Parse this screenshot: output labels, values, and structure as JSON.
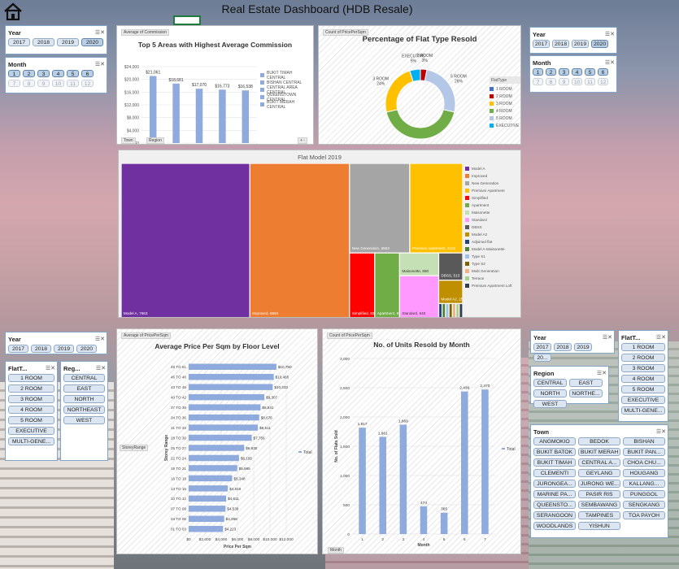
{
  "header": {
    "title": "Real Estate Dashboard (HDB Resale)",
    "home_icon": "home-icon"
  },
  "slicers": {
    "tl_year": {
      "title": "Year",
      "items": [
        "2017",
        "2018",
        "2019",
        "2020"
      ],
      "selected": [
        "2020"
      ]
    },
    "tl_month": {
      "title": "Month",
      "items": [
        "1",
        "2",
        "3",
        "4",
        "5",
        "6",
        "7",
        "8",
        "9",
        "10",
        "11",
        "12"
      ],
      "selected": [
        "1",
        "2",
        "3",
        "4",
        "5",
        "6"
      ]
    },
    "tr_year": {
      "title": "Year",
      "items": [
        "2017",
        "2018",
        "2019",
        "2020"
      ],
      "selected": [
        "2020"
      ]
    },
    "tr_month": {
      "title": "Month",
      "items": [
        "1",
        "2",
        "3",
        "4",
        "5",
        "6",
        "7",
        "8",
        "9",
        "10",
        "11",
        "12"
      ],
      "selected": [
        "1",
        "2",
        "3",
        "4",
        "5",
        "6"
      ]
    },
    "bl_year": {
      "title": "Year",
      "items": [
        "2017",
        "2018",
        "2019",
        "2020"
      ]
    },
    "bl_flattype": {
      "title": "FlatT...",
      "items": [
        "1 ROOM",
        "2 ROOM",
        "3 ROOM",
        "4 ROOM",
        "5 ROOM",
        "EXECUTIVE",
        "MULTI-GENE..."
      ]
    },
    "bl_region": {
      "title": "Reg...",
      "items": [
        "CENTRAL",
        "EAST",
        "NORTH",
        "NORTHEAST",
        "WEST"
      ]
    },
    "br_year": {
      "title": "Year",
      "items": [
        "2017",
        "2018",
        "2019",
        "20..."
      ]
    },
    "br_flattype": {
      "title": "FlatT...",
      "items": [
        "1 ROOM",
        "2 ROOM",
        "3 ROOM",
        "4 ROOM",
        "5 ROOM",
        "EXECUTIVE",
        "MULTI-GENE..."
      ]
    },
    "br_region": {
      "title": "Region",
      "items": [
        "CENTRAL",
        "EAST",
        "NORTH",
        "NORTHE...",
        "WEST"
      ]
    },
    "br_town": {
      "title": "Town",
      "items": [
        "ANGMOKIO",
        "BEDOK",
        "BISHAN",
        "BUKIT BATOK",
        "BUKIT MERAH",
        "BUKIT PAN...",
        "BUKIT TIMAH",
        "CENTRAL A...",
        "CHOA CHU...",
        "CLEMENTI",
        "GEYLANG",
        "HOUGANG",
        "JURONGEA...",
        "JURONG WE...",
        "KALLANG...",
        "MARINE PA...",
        "PASIR RIS",
        "PUNGGOL",
        "QUEENSTO...",
        "SEMBAWANG",
        "SENGKANG",
        "SERANGOON",
        "TAMPINES",
        "TOA PAYOH",
        "WOODLANDS",
        "YISHUN"
      ]
    }
  },
  "chart_data": [
    {
      "type": "bar",
      "id": "commission",
      "title": "Top 5 Areas with Highest Average Commission",
      "field_tag": "Average of Commission",
      "filter_tags": [
        "Town",
        "Region"
      ],
      "categories": [
        "CENTRAL BUKIT TIMAH",
        "CENTRAL BISHAN",
        "CENTRAL CENTRAL AREA",
        "CENTRAL QUEENSTOWN",
        "CENTRAL BUKIT MERAH"
      ],
      "values": [
        21061,
        18681,
        17070,
        16773,
        16538
      ],
      "value_labels": [
        "$21,061",
        "$18,681",
        "$17,070",
        "$16,773",
        "$16,538"
      ],
      "yticks": [
        "$0",
        "$4,000",
        "$8,000",
        "$12,000",
        "$16,000",
        "$20,000",
        "$24,000"
      ],
      "ylim": [
        0,
        24000
      ],
      "legend": [
        "BUKIT TIMAH CENTRAL",
        "BISHAN CENTRAL",
        "CENTRAL AREA CENTRAL",
        "QUEENSTOWN CENTRAL",
        "BUKIT MERAH CENTRAL"
      ]
    },
    {
      "type": "pie",
      "id": "flat_type",
      "title": "Percentage of Flat Type Resold",
      "field_tag": "Count of PricePerSqm",
      "labels": [
        "1 ROOM",
        "2 ROOM",
        "3 ROOM",
        "4 ROOM",
        "5 ROOM",
        "EXECUTIVE"
      ],
      "values": [
        0,
        3,
        24,
        43,
        26,
        5
      ],
      "slice_labels": [
        "",
        "2 ROOM\n3%",
        "3 ROOM\n24%",
        "4 ROOM\n43%",
        "5 ROOM\n26%",
        "EXECUTIVE\n5%"
      ],
      "legend_title": "FlatType"
    },
    {
      "type": "heatmap",
      "id": "flat_model",
      "title": "Flat Model 2019",
      "labels": [
        "Model A",
        "Improved",
        "New Generation",
        "Premium Apartment",
        "Simplified",
        "Apartment",
        "Maisonette",
        "Standard",
        "DBSS",
        "Model A2",
        "Adjoined flat",
        "Model A-Maisonette",
        "Type S1",
        "Type S2",
        "Multi Generation",
        "Terrace",
        "Premium Apartment Loft"
      ],
      "values": [
        7663,
        5553,
        3553,
        3121,
        828,
        816,
        680,
        640,
        513,
        256,
        60,
        40,
        30,
        20,
        10,
        5,
        3
      ],
      "tile_labels": [
        "Model A, 7663",
        "Improved, 5553",
        "New Generation, 3553",
        "Premium Apartment, 3121",
        "Simplified, 828",
        "Apartment, 816",
        "Maisonette, 680",
        "Standard, 640",
        "DBSS, 513",
        "Model A2, 256"
      ]
    },
    {
      "type": "bar",
      "id": "price_floor",
      "title": "Average Price Per Sqm by Floor Level",
      "orientation": "horizontal",
      "field_tag": "Average of PricePerSqm",
      "filter_tag": "StoreyRange",
      "xlabel": "Price Per Sqm",
      "ylabel": "Storey Range",
      "legend": [
        "Total"
      ],
      "categories": [
        "49 TO 51",
        "46 TO 48",
        "43 TO 45",
        "40 TO 42",
        "37 TO 39",
        "34 TO 36",
        "31 TO 33",
        "28 TO 30",
        "25 TO 27",
        "22 TO 24",
        "19 TO 21",
        "16 TO 18",
        "13 TO 15",
        "10 TO 12",
        "07 TO 09",
        "04 TO 06",
        "01 TO 03"
      ],
      "values": [
        10790,
        10465,
        10333,
        9307,
        8841,
        8676,
        8511,
        7756,
        6830,
        6195,
        5965,
        5348,
        4818,
        4611,
        4530,
        4368,
        4223
      ],
      "value_labels": [
        "$10,790",
        "$10,465",
        "$10,333",
        "$9,307",
        "$8,841",
        "$8,676",
        "$8,511",
        "$7,756",
        "$6,830",
        "$6,195",
        "$5,965",
        "$5,348",
        "$4,818",
        "$4,611",
        "$4,530",
        "$4,368",
        "$4,223"
      ],
      "xticks": [
        "$0",
        "$2,000",
        "$4,000",
        "$6,000",
        "$8,000",
        "$10,000",
        "$12,000"
      ],
      "xlim": [
        0,
        12000
      ]
    },
    {
      "type": "bar",
      "id": "units_month",
      "title": "No. of Units Resold by Month",
      "field_tag": "Count of PricePerSqm",
      "filter_tag": "Month",
      "xlabel": "Month",
      "ylabel": "No. of Flats Sold",
      "legend": [
        "Total"
      ],
      "categories": [
        "1",
        "2",
        "3",
        "4",
        "5",
        "6",
        "7"
      ],
      "values": [
        1817,
        1661,
        1869,
        474,
        365,
        2436,
        2470
      ],
      "value_labels": [
        "1,817",
        "1,661",
        "1,869",
        "474",
        "365",
        "2,436",
        "2,470"
      ],
      "yticks": [
        "0",
        "500",
        "1,000",
        "1,500",
        "2,000",
        "2,500",
        "3,000"
      ],
      "ylim": [
        0,
        3000
      ]
    }
  ],
  "colors": {
    "bar": "#8faadc",
    "accent": "#4472c4",
    "dark": "#222222"
  }
}
